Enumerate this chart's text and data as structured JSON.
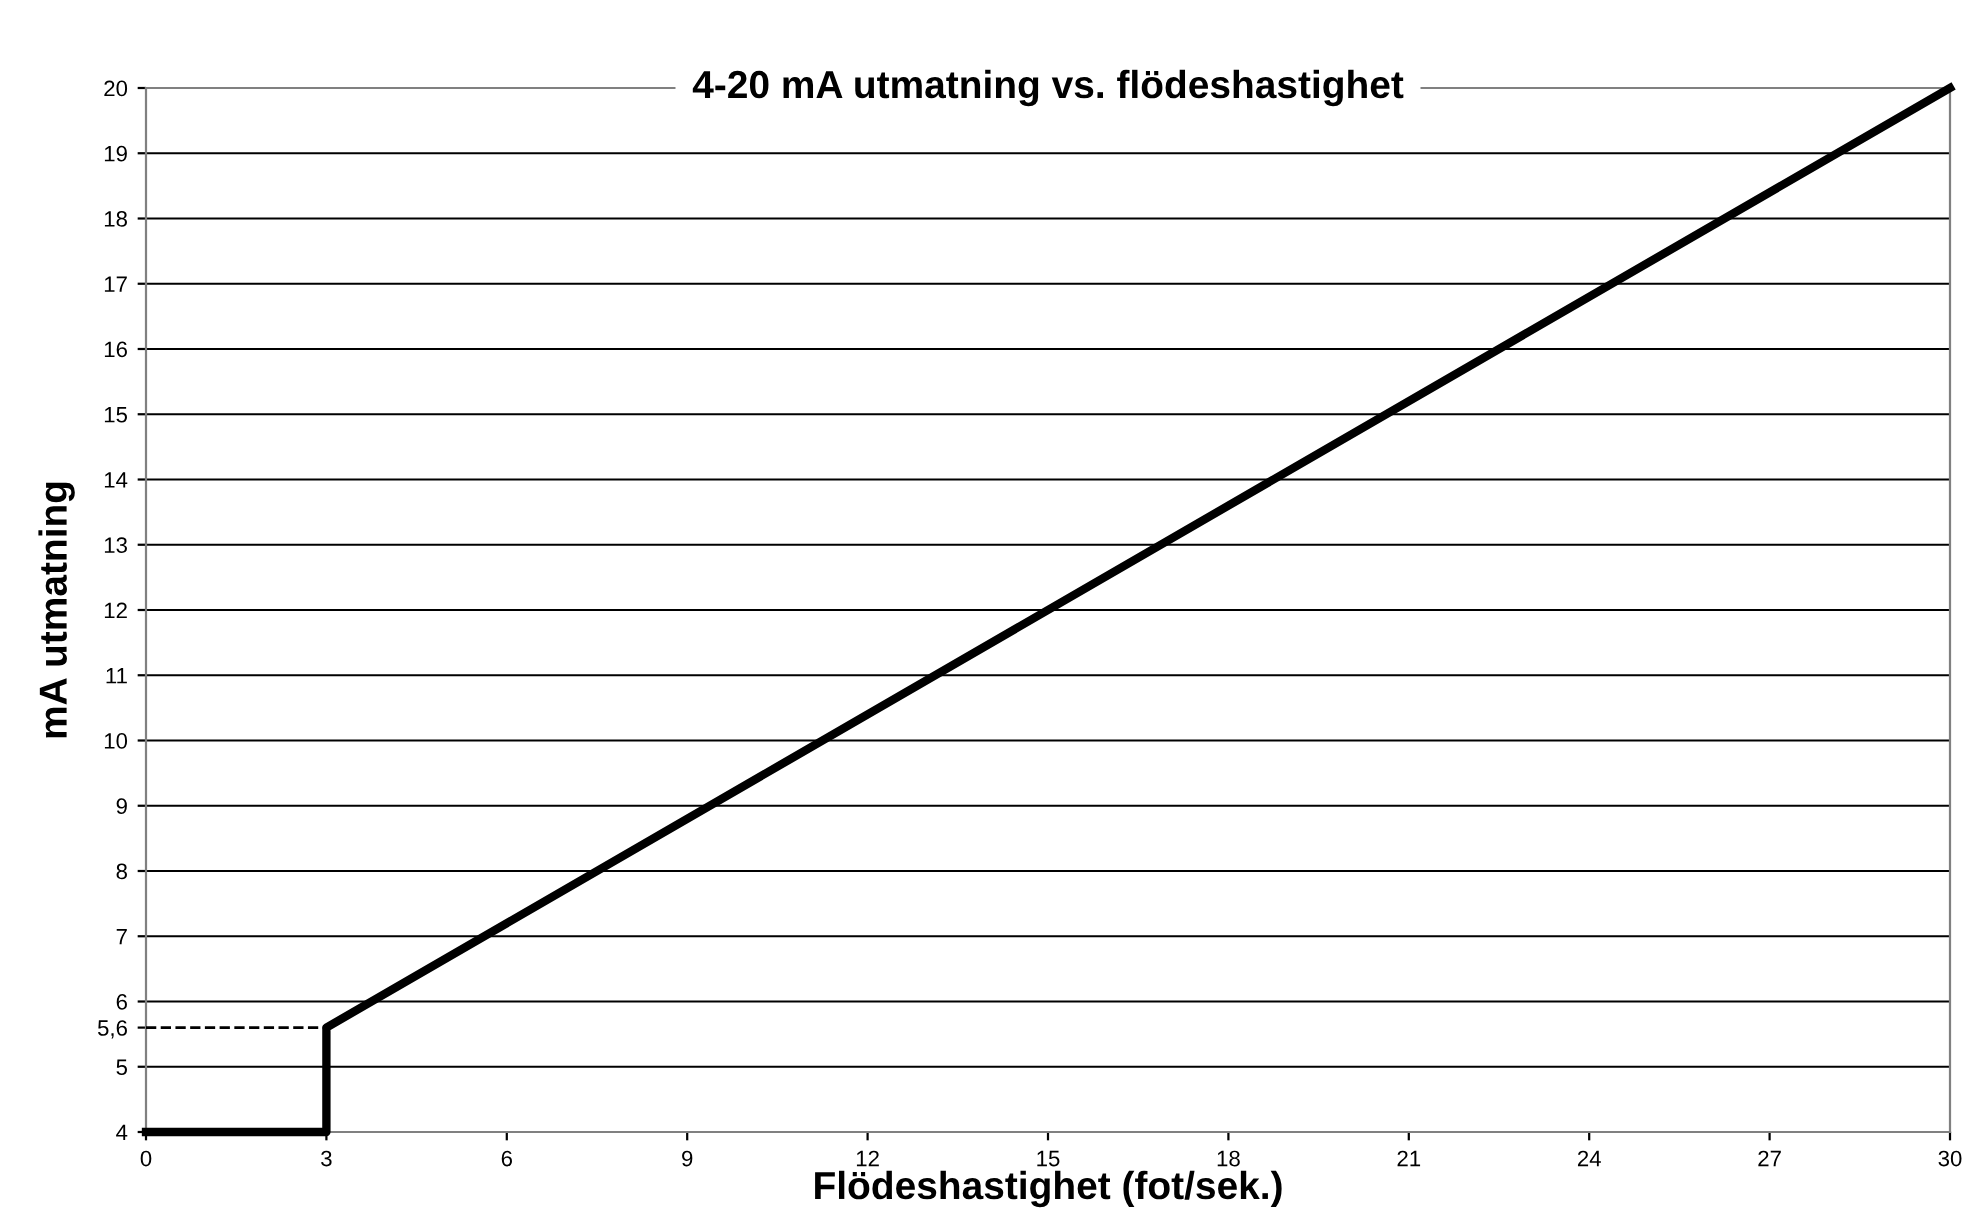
{
  "chart_data": {
    "type": "line",
    "title": "4-20 mA utmatning vs. flödeshastighet",
    "xlabel": "Flödeshastighet (fot/sek.)",
    "ylabel": "mA utmatning",
    "series": [
      {
        "color": "#000000",
        "x": [
          0,
          3,
          3,
          30
        ],
        "values": [
          4,
          4,
          5.6,
          20
        ],
        "line_style": "solid"
      },
      {
        "color": "#000000",
        "x": [
          0,
          3
        ],
        "values": [
          5.6,
          5.6
        ],
        "line_style": "dashed"
      }
    ],
    "xlim": [
      0,
      30
    ],
    "xticks": [
      0,
      3,
      6,
      9,
      12,
      15,
      18,
      21,
      24,
      27,
      30
    ],
    "ylim": [
      4,
      20
    ],
    "yticks": [
      4,
      5,
      {
        "value": 5.6,
        "label": "5,6"
      },
      6,
      7,
      8,
      9,
      10,
      11,
      12,
      13,
      14,
      15,
      16,
      17,
      18,
      19,
      20
    ],
    "grid": "y",
    "legend": false,
    "marker": "none"
  }
}
